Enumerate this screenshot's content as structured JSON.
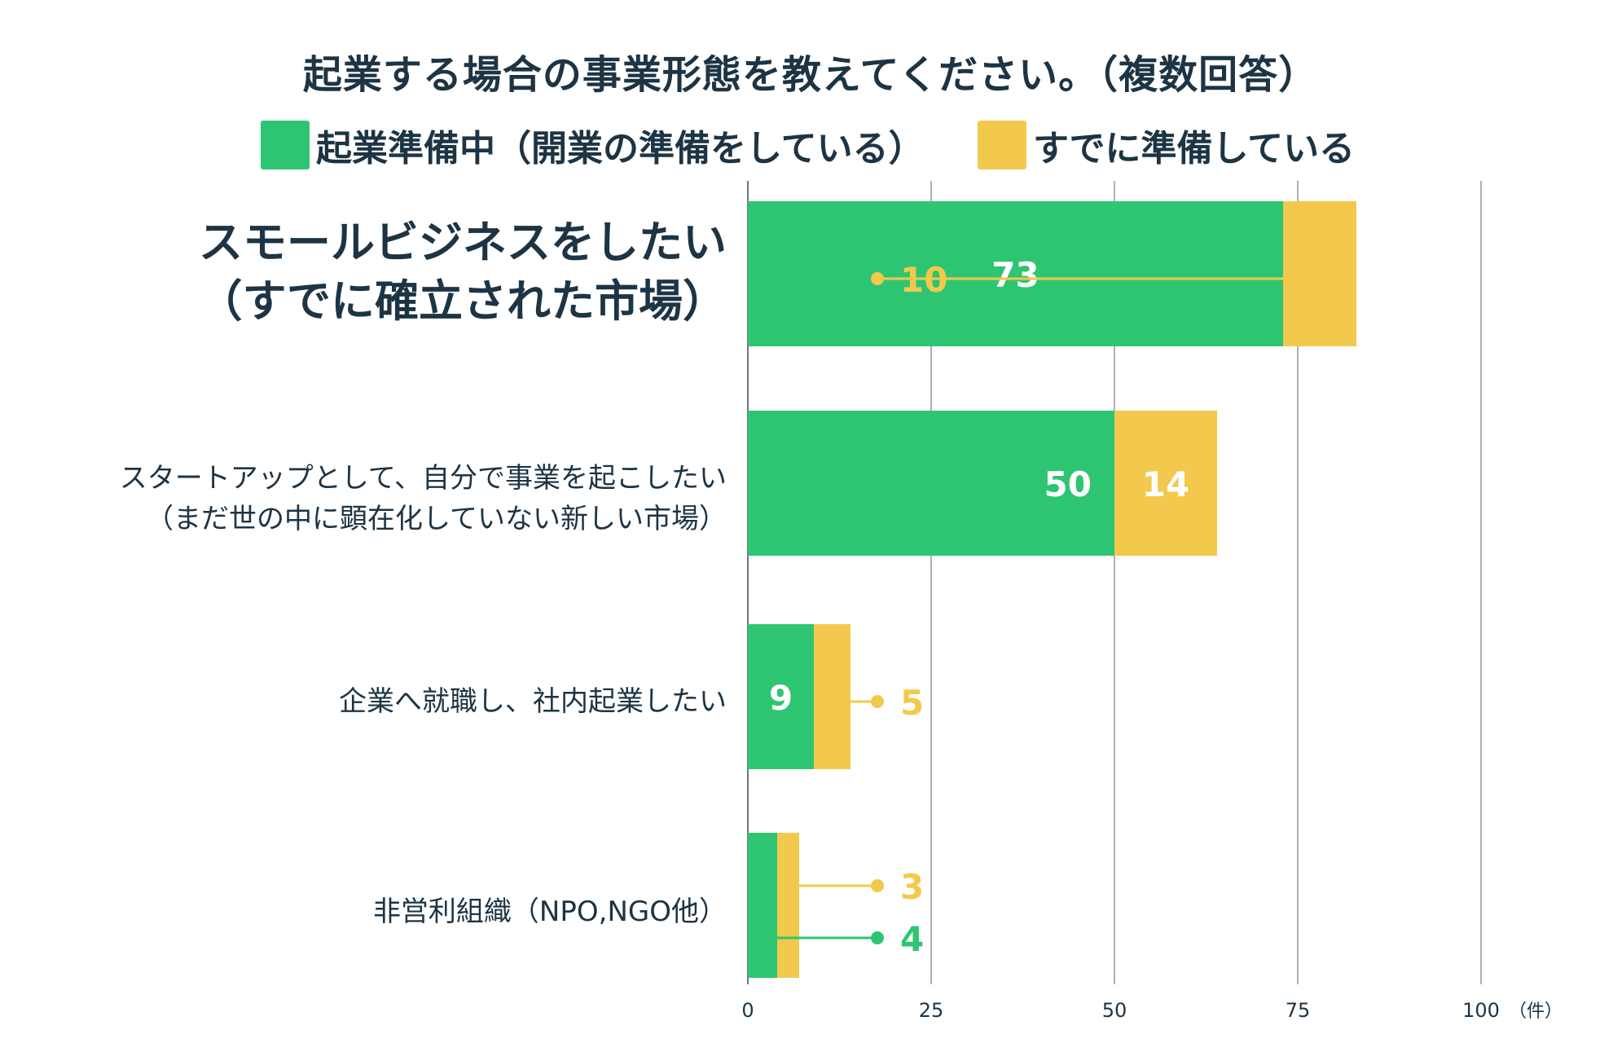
{
  "chart_data": {
    "type": "bar",
    "orientation": "horizontal",
    "stacked": true,
    "title": "起業する場合の事業形態を教えてください。（複数回答）",
    "categories": [
      [
        "スモールビジネスをしたい",
        "（すでに確立された市場）"
      ],
      [
        "スタートアップとして、自分で事業を起こしたい",
        "（まだ世の中に顕在化していない新しい市場）"
      ],
      [
        "企業へ就職し、社内起業したい"
      ],
      [
        "非営利組織（NPO,NGO他）"
      ]
    ],
    "series": [
      {
        "name": "起業準備中（開業の準備をしている）",
        "color": "#2ec572",
        "values": [
          73,
          50,
          9,
          4
        ],
        "labels": [
          "73",
          "50",
          "9",
          "4"
        ]
      },
      {
        "name": "すでに準備している",
        "color": "#f2c94c",
        "values": [
          10,
          14,
          5,
          3
        ],
        "labels": [
          "10",
          "14",
          "5",
          "3"
        ]
      }
    ],
    "x_ticks": [
      "0",
      "25",
      "50",
      "75",
      "100"
    ],
    "x_unit": "（件）",
    "xlim": [
      0,
      100
    ],
    "grid": "vertical",
    "legend_position": "top"
  }
}
